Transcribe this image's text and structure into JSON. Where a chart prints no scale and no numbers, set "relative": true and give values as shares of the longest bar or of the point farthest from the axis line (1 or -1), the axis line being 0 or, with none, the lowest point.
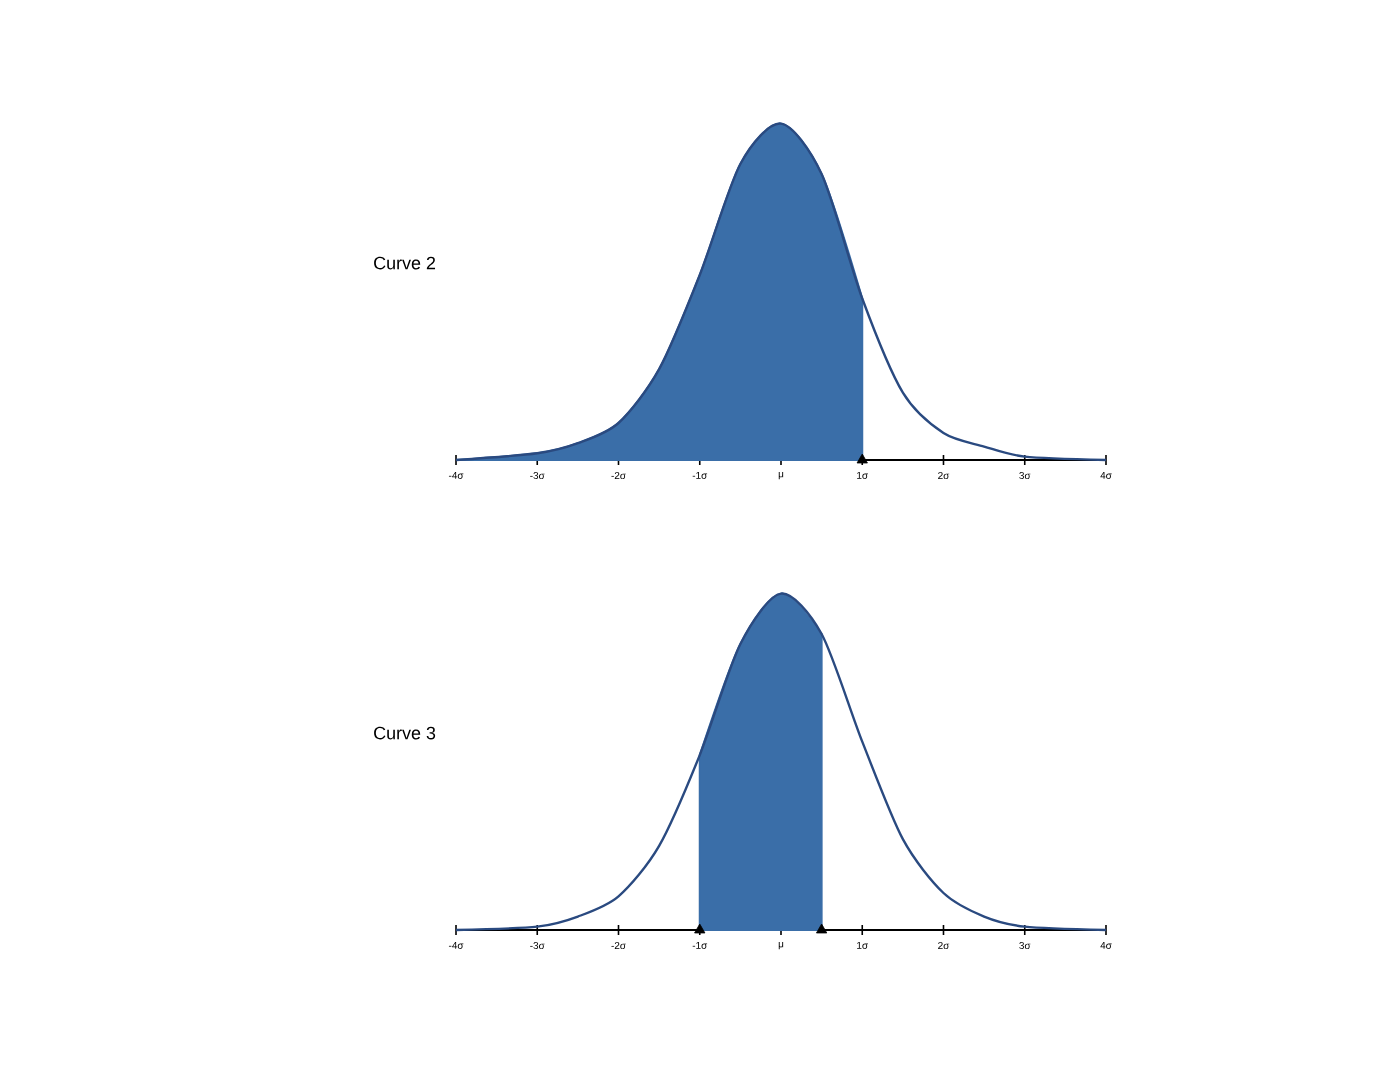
{
  "chart_data": [
    {
      "type": "line",
      "title": "Curve 2",
      "relative": true,
      "xlim": [
        -4,
        4
      ],
      "xticks": [
        {
          "value": -4,
          "label": "-4σ"
        },
        {
          "value": -3,
          "label": "-3σ"
        },
        {
          "value": -2,
          "label": "-2σ"
        },
        {
          "value": -1,
          "label": "-1σ"
        },
        {
          "value": 0,
          "label": "μ"
        },
        {
          "value": 1,
          "label": "1σ"
        },
        {
          "value": 2,
          "label": "2σ"
        },
        {
          "value": 3,
          "label": "3σ"
        },
        {
          "value": 4,
          "label": "4σ"
        }
      ],
      "series": [
        {
          "type": "area",
          "color": "#3a6ea8",
          "x": [
            -4,
            -3,
            -2.5,
            -2,
            -1.5,
            -1,
            -0.5,
            0,
            0.5,
            1
          ],
          "values": [
            0,
            0.02,
            0.05,
            0.11,
            0.27,
            0.55,
            0.88,
            1,
            0.85,
            0.48
          ]
        },
        {
          "color": "#2a4a80",
          "x": [
            -4,
            -3,
            -2.5,
            -2,
            -1.5,
            -1,
            -0.5,
            0,
            0.5,
            1,
            1.5,
            2,
            2.5,
            3,
            4
          ],
          "values": [
            0,
            0.02,
            0.05,
            0.11,
            0.27,
            0.55,
            0.88,
            1,
            0.85,
            0.48,
            0.2,
            0.08,
            0.04,
            0.01,
            0
          ]
        },
        {
          "type": "scatter",
          "color": "#000000",
          "marker": "triangle",
          "x": [
            1
          ],
          "values": [
            0
          ]
        }
      ]
    },
    {
      "type": "line",
      "title": "Curve 3",
      "relative": true,
      "xlim": [
        -4,
        4
      ],
      "xticks": [
        {
          "value": -4,
          "label": "-4σ"
        },
        {
          "value": -3,
          "label": "-3σ"
        },
        {
          "value": -2,
          "label": "-2σ"
        },
        {
          "value": -1,
          "label": "-1σ"
        },
        {
          "value": 0,
          "label": "μ"
        },
        {
          "value": 1,
          "label": "1σ"
        },
        {
          "value": 2,
          "label": "2σ"
        },
        {
          "value": 3,
          "label": "3σ"
        },
        {
          "value": 4,
          "label": "4σ"
        }
      ],
      "series": [
        {
          "type": "area",
          "color": "#3a6ea8",
          "x": [
            -1,
            -0.5,
            0,
            0.5
          ],
          "values": [
            0.52,
            0.85,
            1,
            0.88
          ]
        },
        {
          "color": "#2a4a80",
          "x": [
            -4,
            -3,
            -2.5,
            -2,
            -1.5,
            -1,
            -0.5,
            0,
            0.5,
            1,
            1.5,
            2,
            2.5,
            3,
            4
          ],
          "values": [
            0,
            0.01,
            0.04,
            0.1,
            0.25,
            0.52,
            0.85,
            1,
            0.88,
            0.56,
            0.27,
            0.11,
            0.04,
            0.01,
            0
          ]
        },
        {
          "type": "scatter",
          "color": "#000000",
          "marker": "triangle",
          "x": [
            -1,
            0.5
          ],
          "values": [
            0,
            0
          ]
        }
      ]
    }
  ]
}
